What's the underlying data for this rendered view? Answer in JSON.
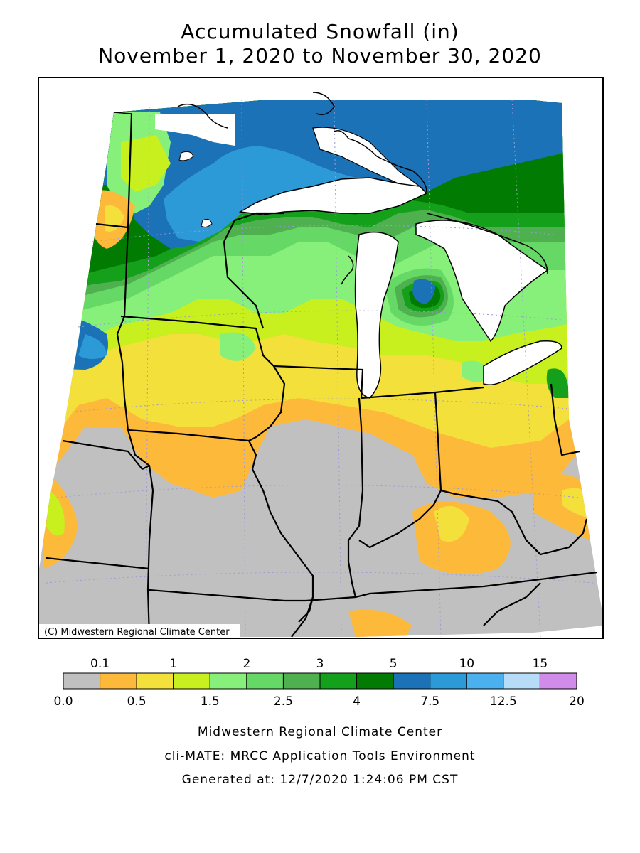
{
  "title": {
    "line1": "Accumulated Snowfall (in)",
    "line2": "November 1, 2020 to November 30, 2020"
  },
  "map": {
    "copyright": "(C) Midwestern Regional Climate Center",
    "colors": {
      "lake": "#ffffff",
      "border": "#000000",
      "graticule": "#9a9ad6"
    }
  },
  "legend": {
    "bins": [
      {
        "from": "0.0",
        "to": "0.1",
        "color": "#c0c0c0"
      },
      {
        "from": "0.1",
        "to": "0.5",
        "color": "#fdb93a"
      },
      {
        "from": "0.5",
        "to": "1",
        "color": "#f4e03a"
      },
      {
        "from": "1",
        "to": "1.5",
        "color": "#c8ef1e"
      },
      {
        "from": "1.5",
        "to": "2",
        "color": "#87f07a"
      },
      {
        "from": "2",
        "to": "2.5",
        "color": "#66d866"
      },
      {
        "from": "2.5",
        "to": "3",
        "color": "#4fb04f"
      },
      {
        "from": "3",
        "to": "4",
        "color": "#15a01c"
      },
      {
        "from": "4",
        "to": "5",
        "color": "#027b02"
      },
      {
        "from": "5",
        "to": "7.5",
        "color": "#1b72b6"
      },
      {
        "from": "7.5",
        "to": "10",
        "color": "#2d9ad8"
      },
      {
        "from": "10",
        "to": "12.5",
        "color": "#4ab0ee"
      },
      {
        "from": "12.5",
        "to": "15",
        "color": "#b6dcf8"
      },
      {
        "from": "15",
        "to": "20",
        "color": "#d08ce8"
      }
    ],
    "top_labels": [
      "0.1",
      "1",
      "2",
      "3",
      "5",
      "10",
      "15"
    ],
    "bottom_labels": [
      "0.0",
      "0.5",
      "1.5",
      "2.5",
      "4",
      "7.5",
      "12.5",
      "20"
    ]
  },
  "footer": {
    "line1": "Midwestern Regional Climate Center",
    "line2": "cli-MATE: MRCC Application Tools Environment",
    "line3": "Generated at: 12/7/2020 1:24:06 PM CST"
  }
}
